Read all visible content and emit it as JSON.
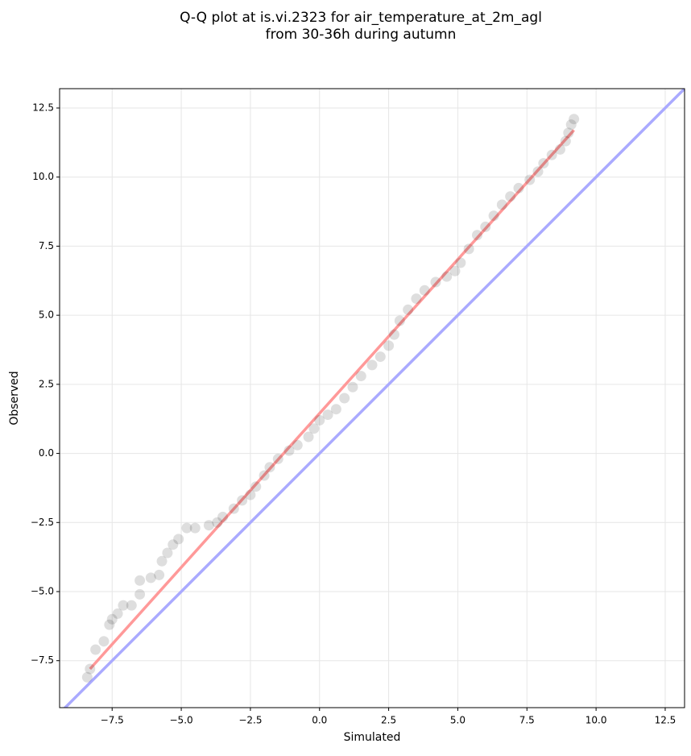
{
  "chart_data": {
    "type": "scatter",
    "title_lines": [
      "Q-Q plot at is.vi.2323 for air_temperature_at_2m_agl",
      "from 30-36h during autumn"
    ],
    "x_label": "Simulated",
    "y_label": "Observed",
    "xlim": [
      -9.4,
      13.2
    ],
    "ylim": [
      -9.2,
      13.2
    ],
    "xticks": [
      {
        "value": -7.5,
        "label": "−7.5"
      },
      {
        "value": -5,
        "label": "−5.0"
      },
      {
        "value": -2.5,
        "label": "−2.5"
      },
      {
        "value": 0,
        "label": "0.0"
      },
      {
        "value": 2.5,
        "label": "2.5"
      },
      {
        "value": 5,
        "label": "5.0"
      },
      {
        "value": 7.5,
        "label": "7.5"
      },
      {
        "value": 10,
        "label": "10.0"
      },
      {
        "value": 12.5,
        "label": "12.5"
      }
    ],
    "yticks": [
      {
        "value": -7.5,
        "label": "−7.5"
      },
      {
        "value": -5,
        "label": "−5.0"
      },
      {
        "value": -2.5,
        "label": "−2.5"
      },
      {
        "value": 0,
        "label": "0.0"
      },
      {
        "value": 2.5,
        "label": "2.5"
      },
      {
        "value": 5,
        "label": "5.0"
      },
      {
        "value": 7.5,
        "label": "7.5"
      },
      {
        "value": 10,
        "label": "10.0"
      },
      {
        "value": 12.5,
        "label": "12.5"
      }
    ],
    "grid": true,
    "point_color": "#000000",
    "x": [
      -8.4,
      -8.3,
      -8.1,
      -7.8,
      -7.6,
      -7.5,
      -7.3,
      -7.1,
      -6.8,
      -6.5,
      -6.5,
      -6.1,
      -5.8,
      -5.7,
      -5.5,
      -5.3,
      -5.1,
      -4.8,
      -4.5,
      -4.0,
      -3.7,
      -3.5,
      -3.1,
      -2.8,
      -2.5,
      -2.3,
      -2.0,
      -1.8,
      -1.5,
      -1.1,
      -0.8,
      -0.4,
      -0.2,
      0.0,
      0.3,
      0.6,
      0.9,
      1.2,
      1.5,
      1.9,
      2.2,
      2.5,
      2.7,
      2.9,
      3.2,
      3.5,
      3.8,
      4.2,
      4.6,
      4.9,
      5.1,
      5.4,
      5.7,
      6.0,
      6.3,
      6.6,
      6.9,
      7.2,
      7.6,
      7.9,
      8.1,
      8.4,
      8.7,
      8.9,
      9.0,
      9.1,
      9.2
    ],
    "values": [
      -8.1,
      -7.8,
      -7.1,
      -6.8,
      -6.2,
      -6.0,
      -5.8,
      -5.5,
      -5.5,
      -5.1,
      -4.6,
      -4.5,
      -4.4,
      -3.9,
      -3.6,
      -3.3,
      -3.1,
      -2.7,
      -2.7,
      -2.6,
      -2.5,
      -2.3,
      -2.0,
      -1.7,
      -1.5,
      -1.2,
      -0.8,
      -0.5,
      -0.2,
      0.1,
      0.3,
      0.6,
      0.9,
      1.2,
      1.4,
      1.6,
      2.0,
      2.4,
      2.8,
      3.2,
      3.5,
      3.9,
      4.3,
      4.8,
      5.2,
      5.6,
      5.9,
      6.2,
      6.4,
      6.6,
      6.9,
      7.4,
      7.9,
      8.2,
      8.6,
      9.0,
      9.3,
      9.6,
      9.9,
      10.2,
      10.5,
      10.8,
      11.0,
      11.3,
      11.6,
      11.9,
      12.1
    ],
    "lines": [
      {
        "color": "#aaaaff",
        "x": [
          -9.4,
          13.2
        ],
        "values": [
          -9.4,
          13.2
        ]
      },
      {
        "color": "#ff9999",
        "x": [
          -8.3,
          9.2
        ],
        "values": [
          -7.8,
          11.7
        ]
      }
    ]
  }
}
